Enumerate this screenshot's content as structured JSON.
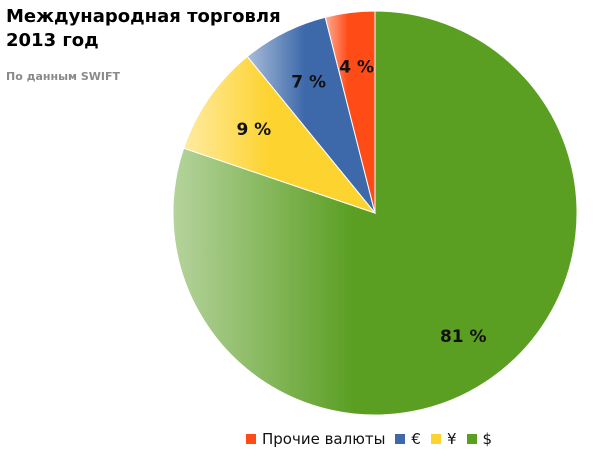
{
  "chart_data": {
    "type": "pie",
    "title_lines": [
      "Международная торговля",
      "2013 год"
    ],
    "subtitle": "По данным SWIFT",
    "slices": [
      {
        "label": "$",
        "value": 81,
        "value_label": "81 %",
        "color": "#5a9e22"
      },
      {
        "label": "¥",
        "value": 9,
        "value_label": "9 %",
        "color": "#fdd32f"
      },
      {
        "label": "€",
        "value": 7,
        "value_label": "7 %",
        "color": "#3d69aa"
      },
      {
        "label": "Прочие валюты",
        "value": 4,
        "value_label": "4 %",
        "color": "#ff4c17"
      }
    ],
    "legend_order": [
      3,
      2,
      1,
      0
    ],
    "legend_position": "bottom"
  }
}
